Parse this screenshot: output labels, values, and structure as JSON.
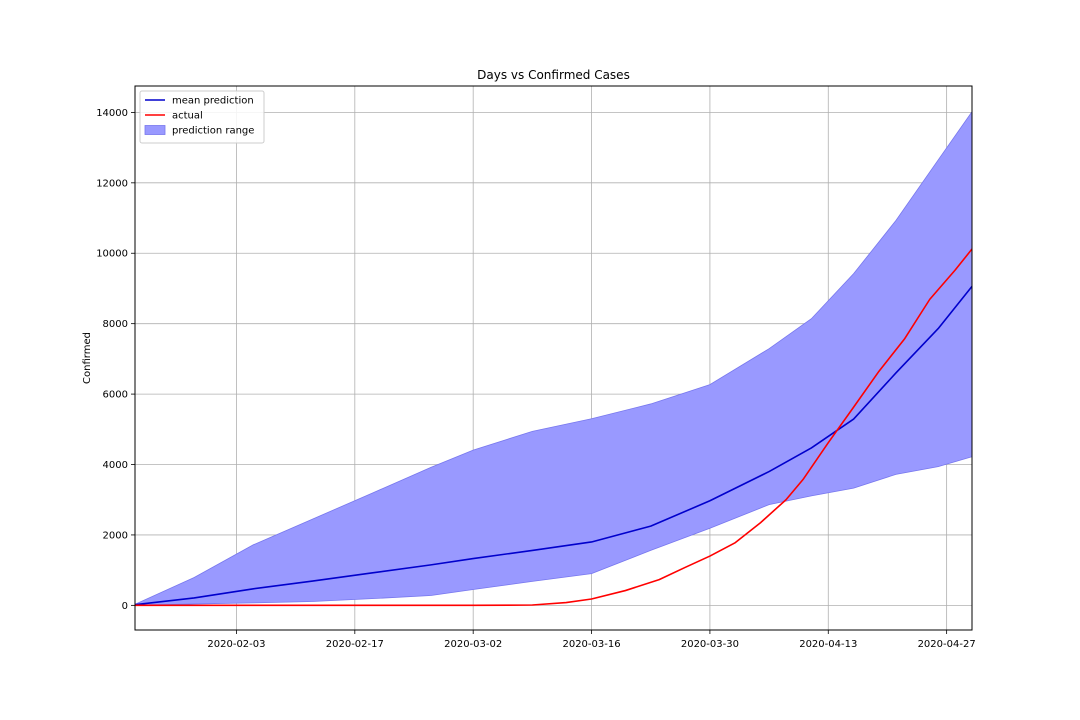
{
  "chart_data": {
    "type": "line",
    "title": "Days vs Confirmed Cases",
    "xlabel": "",
    "ylabel": "Confirmed",
    "x_axis": "date",
    "xlim": [
      "2020-01-22",
      "2020-04-30"
    ],
    "ylim": [
      -700,
      14750
    ],
    "grid": true,
    "legend_position": "top-left",
    "xticks": [
      "2020-02-03",
      "2020-02-17",
      "2020-03-02",
      "2020-03-16",
      "2020-03-30",
      "2020-04-13",
      "2020-04-27"
    ],
    "yticks": [
      0,
      2000,
      4000,
      6000,
      8000,
      10000,
      12000,
      14000
    ],
    "series": [
      {
        "name": "mean prediction",
        "kind": "line",
        "color": "#0000cc",
        "x": [
          "2020-01-22",
          "2020-01-29",
          "2020-02-05",
          "2020-02-12",
          "2020-02-19",
          "2020-02-26",
          "2020-03-02",
          "2020-03-09",
          "2020-03-16",
          "2020-03-23",
          "2020-03-30",
          "2020-04-06",
          "2020-04-11",
          "2020-04-16",
          "2020-04-21",
          "2020-04-26",
          "2020-04-30"
        ],
        "values": [
          20,
          210,
          470,
          690,
          920,
          1150,
          1330,
          1560,
          1800,
          2250,
          2970,
          3800,
          4470,
          5290,
          6600,
          7860,
          9060
        ]
      },
      {
        "name": "actual",
        "kind": "line",
        "color": "#ff0000",
        "x": [
          "2020-01-22",
          "2020-02-03",
          "2020-02-17",
          "2020-03-02",
          "2020-03-09",
          "2020-03-13",
          "2020-03-16",
          "2020-03-20",
          "2020-03-24",
          "2020-03-27",
          "2020-03-30",
          "2020-04-02",
          "2020-04-05",
          "2020-04-08",
          "2020-04-10",
          "2020-04-13",
          "2020-04-16",
          "2020-04-19",
          "2020-04-22",
          "2020-04-25",
          "2020-04-28",
          "2020-04-30"
        ],
        "values": [
          0,
          0,
          0,
          0,
          10,
          80,
          180,
          420,
          730,
          1070,
          1400,
          1780,
          2350,
          3000,
          3570,
          4620,
          5630,
          6650,
          7560,
          8690,
          9520,
          10120
        ]
      },
      {
        "name": "prediction range",
        "kind": "band",
        "color": "#9999ff",
        "x": [
          "2020-01-22",
          "2020-01-29",
          "2020-02-05",
          "2020-02-12",
          "2020-02-19",
          "2020-02-26",
          "2020-03-02",
          "2020-03-09",
          "2020-03-16",
          "2020-03-23",
          "2020-03-30",
          "2020-04-06",
          "2020-04-11",
          "2020-04-16",
          "2020-04-21",
          "2020-04-26",
          "2020-04-30"
        ],
        "lower": [
          0,
          40,
          70,
          110,
          190,
          280,
          450,
          680,
          900,
          1560,
          2190,
          2860,
          3110,
          3330,
          3720,
          3940,
          4220
        ],
        "upper": [
          30,
          790,
          1720,
          2450,
          3180,
          3920,
          4410,
          4940,
          5300,
          5720,
          6270,
          7290,
          8140,
          9420,
          10930,
          12650,
          14020
        ]
      }
    ]
  }
}
